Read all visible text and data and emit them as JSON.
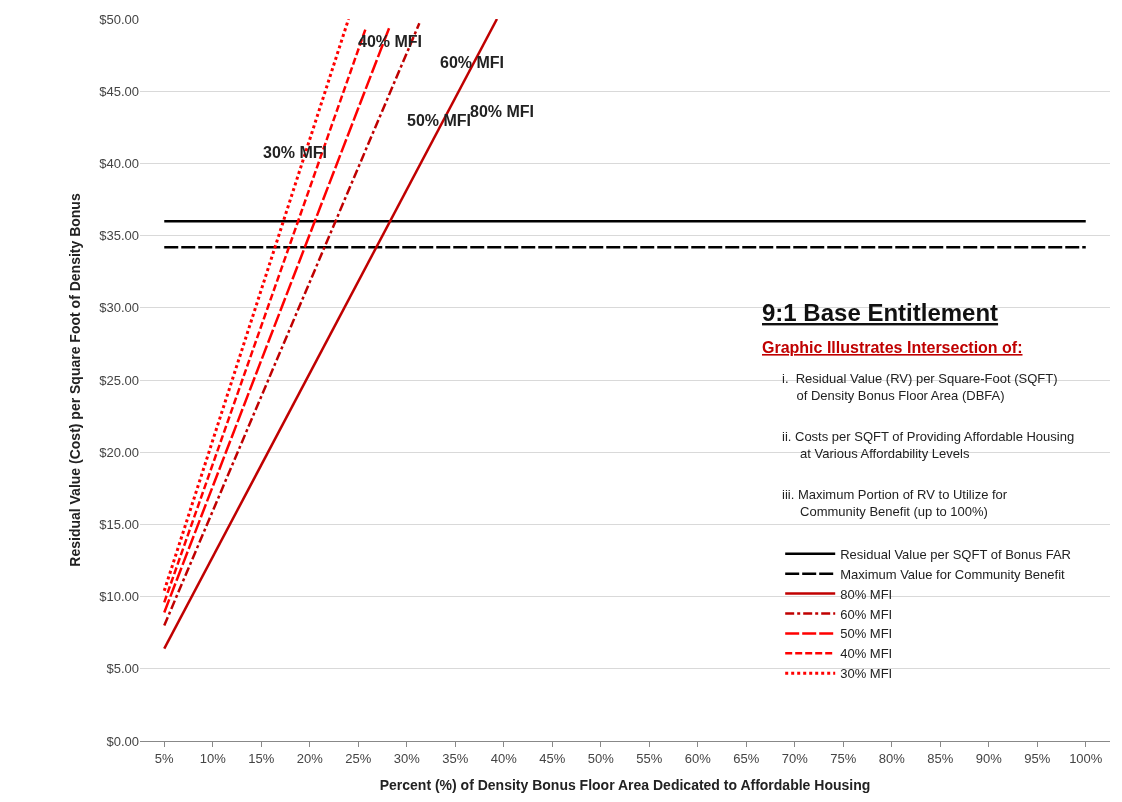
{
  "chart_data": {
    "type": "line",
    "xlabel": "Percent (%) of Density Bonus Floor Area Dedicated to Affordable Housing",
    "ylabel": "Residual Value (Cost) per Square Foot of Density Bonus",
    "xlim": [
      2.5,
      102.5
    ],
    "xticks": [
      {
        "value": 5,
        "label": "5%"
      },
      {
        "value": 10,
        "label": "10%"
      },
      {
        "value": 15,
        "label": "15%"
      },
      {
        "value": 20,
        "label": "20%"
      },
      {
        "value": 25,
        "label": "25%"
      },
      {
        "value": 30,
        "label": "30%"
      },
      {
        "value": 35,
        "label": "35%"
      },
      {
        "value": 40,
        "label": "40%"
      },
      {
        "value": 45,
        "label": "45%"
      },
      {
        "value": 50,
        "label": "50%"
      },
      {
        "value": 55,
        "label": "55%"
      },
      {
        "value": 60,
        "label": "60%"
      },
      {
        "value": 65,
        "label": "65%"
      },
      {
        "value": 70,
        "label": "70%"
      },
      {
        "value": 75,
        "label": "75%"
      },
      {
        "value": 80,
        "label": "80%"
      },
      {
        "value": 85,
        "label": "85%"
      },
      {
        "value": 90,
        "label": "90%"
      },
      {
        "value": 95,
        "label": "95%"
      },
      {
        "value": 100,
        "label": "100%"
      }
    ],
    "ylim": [
      0,
      50
    ],
    "yticks": [
      {
        "value": 0,
        "label": "$0.00"
      },
      {
        "value": 5,
        "label": "$5.00"
      },
      {
        "value": 10,
        "label": "$10.00"
      },
      {
        "value": 15,
        "label": "$15.00"
      },
      {
        "value": 20,
        "label": "$20.00"
      },
      {
        "value": 25,
        "label": "$25.00"
      },
      {
        "value": 30,
        "label": "$30.00"
      },
      {
        "value": 35,
        "label": "$35.00"
      },
      {
        "value": 40,
        "label": "$40.00"
      },
      {
        "value": 45,
        "label": "$45.00"
      },
      {
        "value": 50,
        "label": "$50.00"
      }
    ],
    "grid": "y",
    "legend": "bottom right",
    "marker": "none",
    "series": [
      {
        "name": "Residual Value per SQFT of Bonus FAR",
        "color": "#000000",
        "line_style": "solid",
        "x": [
          5,
          100
        ],
        "values": [
          36.0,
          36.0
        ]
      },
      {
        "name": "Maximum Value for Community Benefit",
        "color": "#000000",
        "line_style": "longdash",
        "x": [
          5,
          100
        ],
        "values": [
          34.2,
          34.2
        ]
      },
      {
        "name": "80% MFI",
        "color": "#c00000",
        "line_style": "solid",
        "x": [
          5,
          39.3
        ],
        "values": [
          6.4,
          50
        ]
      },
      {
        "name": "60% MFI",
        "color": "#c00000",
        "line_style": "dashdot",
        "x": [
          5,
          31.3
        ],
        "values": [
          8.0,
          49.7
        ]
      },
      {
        "name": "50% MFI",
        "color": "#ff0000",
        "line_style": "longdash",
        "x": [
          5,
          28.2
        ],
        "values": [
          8.9,
          49.4
        ]
      },
      {
        "name": "40% MFI",
        "color": "#ff0000",
        "line_style": "dashed",
        "x": [
          5,
          25.8
        ],
        "values": [
          9.6,
          49.4
        ]
      },
      {
        "name": "30% MFI",
        "color": "#ff0000",
        "line_style": "dotted",
        "x": [
          5,
          24
        ],
        "values": [
          10.4,
          50
        ]
      }
    ],
    "annotations": [
      "30% MFI",
      "40% MFI",
      "60% MFI",
      "50% MFI",
      "80% MFI",
      "9:1 Base Entitlement",
      "Graphic Illustrates Intersection of:",
      "i.  Residual Value (RV) per Square-Foot (SQFT)\n    of Density Bonus Floor Area (DBFA)",
      "ii. Costs per SQFT of Providing Affordable Housing\n     at Various Affordability Levels",
      "iii. Maximum Portion of RV to Utilize for\n     Community Benefit (up to 100%)"
    ]
  }
}
